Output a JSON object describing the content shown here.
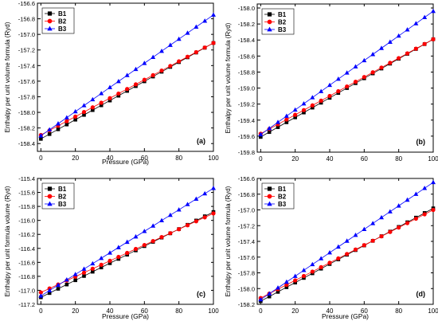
{
  "chart_data": [
    {
      "type": "line",
      "panel_label": "(a)",
      "xlabel": "Pressure (GPa)",
      "ylabel": "Enthalpy per unit volume formula (Ryd)",
      "xlim": [
        -2,
        100
      ],
      "ylim": [
        -158.5,
        -156.6
      ],
      "xticks": [
        0,
        20,
        40,
        60,
        80,
        100
      ],
      "yticks": [
        -158.4,
        -158.2,
        -158.0,
        -157.8,
        -157.6,
        -157.4,
        -157.2,
        -157.0,
        -156.8,
        -156.6
      ],
      "ytick_labels": [
        "-158.4",
        "-158.2",
        "-158.0",
        "-157.8",
        "-157.6",
        "-157.4",
        "-157.2",
        "-157.0",
        "-156.8",
        "-156.6"
      ],
      "legend_position": "top-left",
      "x": [
        0,
        5,
        10,
        15,
        20,
        25,
        30,
        35,
        40,
        45,
        50,
        55,
        60,
        65,
        70,
        75,
        80,
        85,
        90,
        95,
        100
      ],
      "series": [
        {
          "name": "B1",
          "marker": "square",
          "color": "#000000",
          "y0": -158.34,
          "y1": -157.11
        },
        {
          "name": "B2",
          "marker": "circle",
          "color": "#ff0000",
          "y0": -158.29,
          "y1": -157.11
        },
        {
          "name": "B3",
          "marker": "triangle",
          "color": "#0000ff",
          "y0": -158.3,
          "y1": -156.75
        }
      ]
    },
    {
      "type": "line",
      "panel_label": "(b)",
      "xlabel": "",
      "ylabel": "Enthalpy per unit volume formula (Ryd)",
      "xlim": [
        -2,
        100
      ],
      "ylim": [
        -159.8,
        -157.95
      ],
      "xticks": [
        0,
        20,
        40,
        60,
        80,
        100
      ],
      "yticks": [
        -159.8,
        -159.6,
        -159.4,
        -159.2,
        -159.0,
        -158.8,
        -158.6,
        -158.4,
        -158.2,
        -158.0
      ],
      "ytick_labels": [
        "-159.8",
        "-159.6",
        "-159.4",
        "-159.2",
        "-159.0",
        "-158.8",
        "-158.6",
        "-158.4",
        "-158.2",
        "-158.0"
      ],
      "legend_position": "top-left",
      "x": [
        0,
        5,
        10,
        15,
        20,
        25,
        30,
        35,
        40,
        45,
        50,
        55,
        60,
        65,
        70,
        75,
        80,
        85,
        90,
        95,
        100
      ],
      "series": [
        {
          "name": "B1",
          "marker": "square",
          "color": "#000000",
          "y0": -159.61,
          "y1": -158.39
        },
        {
          "name": "B2",
          "marker": "circle",
          "color": "#ff0000",
          "y0": -159.57,
          "y1": -158.39
        },
        {
          "name": "B3",
          "marker": "triangle",
          "color": "#0000ff",
          "y0": -159.58,
          "y1": -158.04
        }
      ]
    },
    {
      "type": "line",
      "panel_label": "(c)",
      "xlabel": "Pressure (GPa)",
      "ylabel": "Enthalpy per unit formula volume (Ryd)",
      "xlim": [
        -2,
        100
      ],
      "ylim": [
        -117.2,
        -115.4
      ],
      "xticks": [
        0,
        20,
        40,
        60,
        80,
        100
      ],
      "yticks": [
        -117.2,
        -117.0,
        -116.8,
        -116.6,
        -116.4,
        -116.2,
        -116.0,
        -115.8,
        -115.6,
        -115.4
      ],
      "ytick_labels": [
        "-117.2",
        "-117.0",
        "-116.8",
        "-116.6",
        "-116.4",
        "-116.2",
        "-116.0",
        "-115.8",
        "-115.6",
        "-115.4"
      ],
      "legend_position": "top-left",
      "x": [
        0,
        5,
        10,
        15,
        20,
        25,
        30,
        35,
        40,
        45,
        50,
        55,
        60,
        65,
        70,
        75,
        80,
        85,
        90,
        95,
        100
      ],
      "series": [
        {
          "name": "B1",
          "marker": "square",
          "color": "#000000",
          "y0": -117.1,
          "y1": -115.88
        },
        {
          "name": "B2",
          "marker": "circle",
          "color": "#ff0000",
          "y0": -117.03,
          "y1": -115.9
        },
        {
          "name": "B3",
          "marker": "triangle",
          "color": "#0000ff",
          "y0": -117.08,
          "y1": -115.54
        }
      ]
    },
    {
      "type": "line",
      "panel_label": "(d)",
      "xlabel": "Pressure (GPa)",
      "ylabel": "Enthalpy per unit volume formula (Ryd)",
      "xlim": [
        -2,
        100
      ],
      "ylim": [
        -158.2,
        -156.6
      ],
      "xticks": [
        0,
        20,
        40,
        60,
        80,
        100
      ],
      "yticks": [
        -158.2,
        -158.0,
        -157.8,
        -157.6,
        -157.4,
        -157.2,
        -157.0,
        -156.8,
        -156.6
      ],
      "ytick_labels": [
        "-158.2",
        "-158.0",
        "-157.8",
        "-157.6",
        "-157.4",
        "-157.2",
        "-157.0",
        "-156.8",
        "-156.6"
      ],
      "legend_position": "top-left",
      "x": [
        0,
        5,
        10,
        15,
        20,
        25,
        30,
        35,
        40,
        45,
        50,
        55,
        60,
        65,
        70,
        75,
        80,
        85,
        90,
        95,
        100
      ],
      "series": [
        {
          "name": "B1",
          "marker": "square",
          "color": "#000000",
          "y0": -158.16,
          "y1": -156.98
        },
        {
          "name": "B2",
          "marker": "circle",
          "color": "#ff0000",
          "y0": -158.12,
          "y1": -157.0
        },
        {
          "name": "B3",
          "marker": "triangle",
          "color": "#0000ff",
          "y0": -158.14,
          "y1": -156.65
        }
      ]
    }
  ]
}
